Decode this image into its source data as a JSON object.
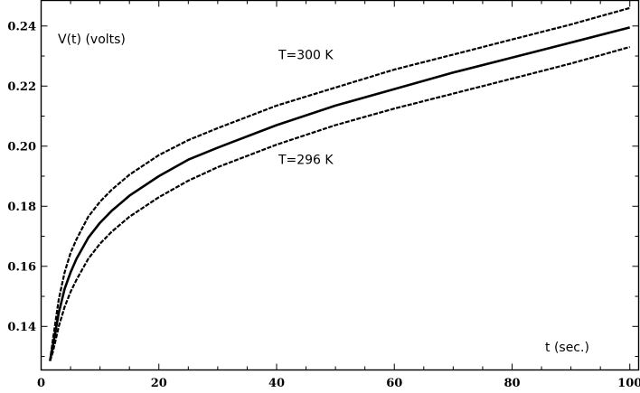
{
  "chart_data": {
    "type": "line",
    "title": "",
    "xlabel": "t (sec.)",
    "ylabel": "V(t) (volts)",
    "xlim": [
      0,
      101.5
    ],
    "ylim": [
      0.1255,
      0.2485
    ],
    "x_ticks": [
      0,
      20,
      40,
      60,
      80,
      100
    ],
    "x_tick_labels": [
      "0",
      "20",
      "40",
      "60",
      "80",
      "100"
    ],
    "y_ticks": [
      0.14,
      0.16,
      0.18,
      0.2,
      0.22,
      0.24
    ],
    "y_tick_labels": [
      "0.14",
      "0.16",
      "0.18",
      "0.20",
      "0.22",
      "0.24"
    ],
    "grid": false,
    "legend": "none",
    "annotations": [
      {
        "text": "T=300 K",
        "x": 40.3,
        "y": 0.2305
      },
      {
        "text": "T=296 K",
        "x": 40.3,
        "y": 0.1955
      }
    ],
    "series": [
      {
        "style": "dashed",
        "color": "#000000",
        "x": [
          1.5,
          2,
          3,
          4,
          5,
          6,
          8,
          10,
          12,
          15,
          20,
          25,
          30,
          40,
          50,
          60,
          70,
          80,
          90,
          100
        ],
        "y": [
          0.1285,
          0.1355,
          0.149,
          0.158,
          0.1645,
          0.169,
          0.1765,
          0.1815,
          0.1855,
          0.1905,
          0.197,
          0.202,
          0.206,
          0.2135,
          0.2195,
          0.2255,
          0.2305,
          0.2355,
          0.2405,
          0.246
        ]
      },
      {
        "style": "solid",
        "color": "#000000",
        "x": [
          1.5,
          2,
          3,
          4,
          5,
          6,
          8,
          10,
          12,
          15,
          20,
          25,
          30,
          40,
          50,
          60,
          70,
          80,
          90,
          100
        ],
        "y": [
          0.1285,
          0.1335,
          0.1445,
          0.1525,
          0.158,
          0.1625,
          0.1695,
          0.1745,
          0.1785,
          0.1835,
          0.19,
          0.1955,
          0.1995,
          0.207,
          0.2135,
          0.219,
          0.2245,
          0.2295,
          0.2345,
          0.2395
        ]
      },
      {
        "style": "dashed",
        "color": "#000000",
        "x": [
          1.5,
          2,
          3,
          4,
          5,
          6,
          8,
          10,
          12,
          15,
          20,
          25,
          30,
          40,
          50,
          60,
          70,
          80,
          90,
          100
        ],
        "y": [
          0.1285,
          0.1315,
          0.14,
          0.1465,
          0.1515,
          0.1555,
          0.1625,
          0.1675,
          0.1715,
          0.1765,
          0.183,
          0.1885,
          0.193,
          0.2005,
          0.207,
          0.2125,
          0.2175,
          0.2225,
          0.2275,
          0.233
        ]
      }
    ]
  }
}
